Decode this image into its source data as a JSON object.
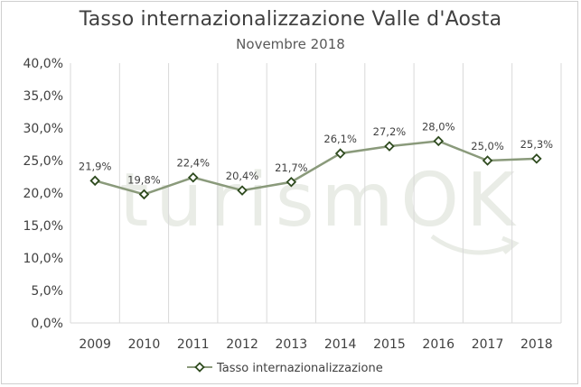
{
  "chart_data": {
    "type": "line",
    "title": "Tasso internazionalizzazione Valle d'Aosta",
    "subtitle": "Novembre 2018",
    "categories": [
      "2009",
      "2010",
      "2011",
      "2012",
      "2013",
      "2014",
      "2015",
      "2016",
      "2017",
      "2018"
    ],
    "series": [
      {
        "name": "Tasso internazionalizzazione",
        "values": [
          21.9,
          19.8,
          22.4,
          20.4,
          21.7,
          26.1,
          27.2,
          28.0,
          25.0,
          25.3
        ],
        "labels": [
          "21,9%",
          "19,8%",
          "22,4%",
          "20,4%",
          "21,7%",
          "26,1%",
          "27,2%",
          "28,0%",
          "25,0%",
          "25,3%"
        ],
        "line_color": "#8a9a7b",
        "marker_edge_color": "#2e4a1e",
        "marker": "diamond"
      }
    ],
    "ylim": [
      0,
      40
    ],
    "yticks": [
      0,
      5,
      10,
      15,
      20,
      25,
      30,
      35,
      40
    ],
    "ytick_labels": [
      "0,0%",
      "5,0%",
      "10,0%",
      "15,0%",
      "20,0%",
      "25,0%",
      "30,0%",
      "35,0%",
      "40,0%"
    ],
    "grid": "vertical",
    "legend": "bottom-center",
    "watermark": "turismOK"
  }
}
